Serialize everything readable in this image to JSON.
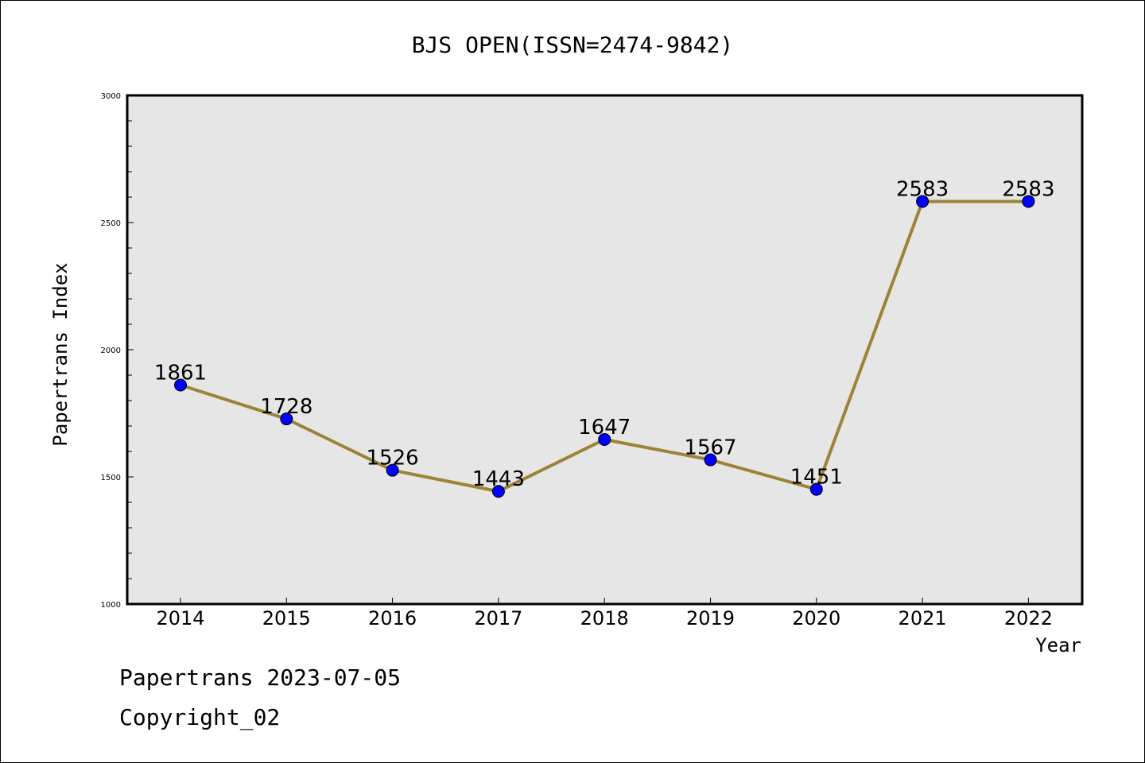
{
  "footer": {
    "date_text": "Papertrans 2023-07-05",
    "copyright_text": "Copyright_02"
  },
  "colors": {
    "line": "#9b8438",
    "marker": "#0000ff",
    "plot_background": "#e6e6e6"
  },
  "chart_data": {
    "type": "line",
    "title": "BJS OPEN(ISSN=2474-9842)",
    "xlabel": "Year",
    "ylabel": "Papertrans Index",
    "categories": [
      "2014",
      "2015",
      "2016",
      "2017",
      "2018",
      "2019",
      "2020",
      "2021",
      "2022"
    ],
    "values": [
      1861,
      1728,
      1526,
      1443,
      1647,
      1567,
      1451,
      2583,
      2583
    ],
    "ylim": [
      1000,
      3000
    ],
    "yticks": [
      1000,
      1500,
      2000,
      2500,
      3000
    ],
    "grid": false,
    "legend": "none"
  }
}
